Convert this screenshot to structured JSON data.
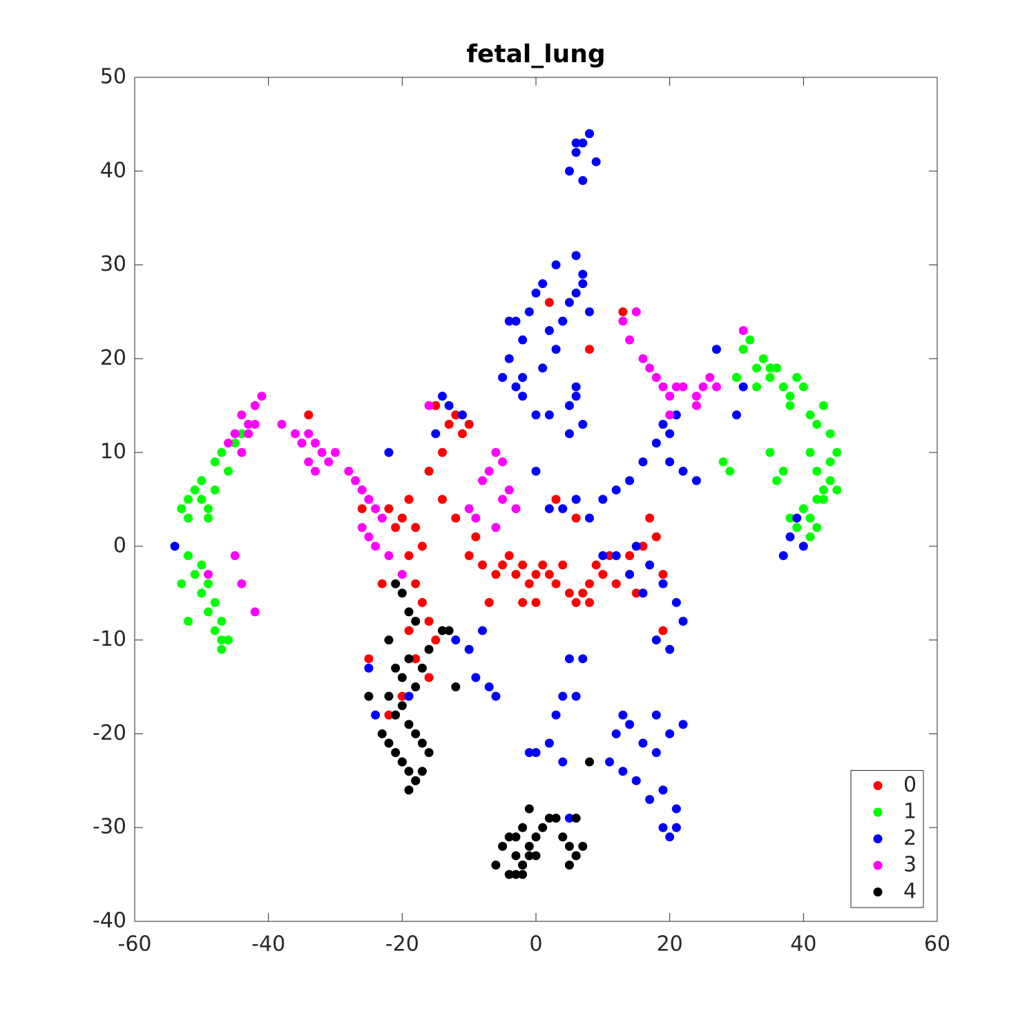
{
  "chart_data": {
    "type": "scatter",
    "title": "fetal_lung",
    "xlim": [
      -60,
      60
    ],
    "xticks": [
      -60,
      -40,
      -20,
      0,
      20,
      40,
      60
    ],
    "ylim": [
      -40,
      50
    ],
    "yticks": [
      -40,
      -30,
      -20,
      -10,
      0,
      10,
      20,
      30,
      40,
      50
    ],
    "legend": "lower right",
    "series": [
      {
        "name": "0",
        "color": "#ff0000",
        "x": [
          -10,
          -8,
          -6,
          -5,
          -4,
          -3,
          -2,
          -1,
          0,
          1,
          2,
          3,
          4,
          5,
          6,
          7,
          8,
          10,
          12,
          14,
          16,
          17,
          18,
          19,
          19,
          8,
          3,
          -2,
          -7,
          -9,
          -12,
          -14,
          -16,
          -17,
          -18,
          -19,
          -20,
          -21,
          -22,
          -19,
          -18,
          -17,
          -16,
          -19,
          -18,
          -16,
          -15,
          -20,
          -22,
          -25,
          -14,
          -13,
          -12,
          -10,
          -15,
          -11,
          -34,
          13,
          2,
          8,
          -23,
          -26,
          0,
          11,
          15,
          6,
          9
        ],
        "y": [
          -1,
          -2,
          -3,
          -2,
          -1,
          -3,
          -2,
          -4,
          -3,
          -2,
          -3,
          -4,
          -2,
          -5,
          -6,
          -5,
          -4,
          -3,
          -4,
          -1,
          0,
          3,
          1,
          -3,
          -9,
          -6,
          5,
          -6,
          -6,
          1,
          3,
          5,
          8,
          0,
          2,
          5,
          3,
          2,
          4,
          -1,
          -4,
          -6,
          -8,
          -9,
          -12,
          -14,
          -10,
          -16,
          -18,
          -12,
          10,
          13,
          14,
          13,
          15,
          12,
          14,
          25,
          26,
          21,
          -4,
          4,
          -6,
          -1,
          -5,
          3,
          -2
        ]
      },
      {
        "name": "1",
        "color": "#00ff00",
        "x": [
          -53,
          -52,
          -51,
          -50,
          -49,
          -52,
          -51,
          -50,
          -49,
          -48,
          -52,
          -51,
          -50,
          -49,
          -48,
          -47,
          -50,
          -49,
          -48,
          -47,
          -48,
          -47,
          -46,
          -45,
          -44,
          -43,
          -47,
          -46,
          -53,
          -52,
          30,
          31,
          32,
          33,
          34,
          35,
          36,
          37,
          38,
          39,
          33,
          35,
          38,
          40,
          41,
          42,
          43,
          44,
          45,
          41,
          42,
          43,
          44,
          40,
          41,
          42,
          43,
          44,
          45,
          37,
          38,
          39,
          40,
          41,
          42,
          28,
          29,
          30,
          36,
          35
        ],
        "y": [
          4,
          5,
          6,
          5,
          3,
          3,
          6,
          7,
          4,
          6,
          -1,
          -3,
          -5,
          -7,
          -9,
          -10,
          -2,
          -4,
          -6,
          -8,
          9,
          10,
          8,
          11,
          12,
          12,
          -11,
          -10,
          -4,
          -8,
          18,
          21,
          22,
          19,
          20,
          18,
          19,
          17,
          16,
          18,
          17,
          19,
          15,
          17,
          14,
          13,
          15,
          12,
          10,
          10,
          8,
          6,
          9,
          4,
          3,
          2,
          5,
          7,
          6,
          8,
          3,
          2,
          4,
          1,
          5,
          9,
          8,
          18,
          7,
          10
        ]
      },
      {
        "name": "2",
        "color": "#0000ff",
        "x": [
          7,
          8,
          6,
          9,
          5,
          7,
          8,
          6,
          -4,
          -3,
          -2,
          -1,
          0,
          1,
          2,
          3,
          4,
          5,
          6,
          7,
          -5,
          -3,
          -2,
          0,
          2,
          5,
          6,
          7,
          -4,
          -2,
          1,
          3,
          6,
          7,
          8,
          5,
          4,
          6,
          0,
          2,
          4,
          6,
          8,
          10,
          12,
          14,
          16,
          18,
          20,
          22,
          24,
          20,
          21,
          19,
          15,
          17,
          19,
          21,
          22,
          18,
          20,
          16,
          14,
          12,
          10,
          12,
          14,
          16,
          18,
          20,
          22,
          19,
          21,
          17,
          15,
          13,
          11,
          20,
          21,
          19,
          18,
          13,
          5,
          4,
          6,
          3,
          7,
          0,
          -1,
          2,
          4,
          -8,
          -7,
          -6,
          -9,
          -10,
          -12,
          -15,
          -14,
          -13,
          -11,
          -22,
          -25,
          -24,
          -19,
          40,
          38,
          37,
          39,
          31,
          27,
          30,
          -54,
          6,
          5
        ],
        "y": [
          43,
          44,
          42,
          41,
          40,
          39,
          44,
          43,
          20,
          24,
          22,
          25,
          27,
          19,
          23,
          21,
          24,
          26,
          27,
          29,
          18,
          17,
          16,
          14,
          14,
          15,
          16,
          13,
          24,
          18,
          28,
          30,
          31,
          28,
          25,
          12,
          24,
          17,
          8,
          4,
          4,
          5,
          3,
          5,
          6,
          7,
          9,
          11,
          9,
          8,
          7,
          12,
          14,
          13,
          0,
          -2,
          -4,
          -6,
          -8,
          -10,
          -11,
          -5,
          -3,
          -1,
          -1,
          -20,
          -19,
          -21,
          -22,
          -20,
          -19,
          -26,
          -28,
          -27,
          -25,
          -24,
          -23,
          -31,
          -30,
          -30,
          -18,
          -18,
          -12,
          -16,
          -16,
          -18,
          -12,
          -22,
          -22,
          -21,
          -23,
          -9,
          -15,
          -16,
          -14,
          -11,
          -10,
          12,
          16,
          15,
          14,
          10,
          -13,
          -18,
          -16,
          0,
          1,
          -1,
          3,
          17,
          21,
          14,
          0,
          -33,
          -29
        ]
      },
      {
        "name": "3",
        "color": "#ff00ff",
        "x": [
          -46,
          -45,
          -44,
          -43,
          -42,
          -41,
          -42,
          -43,
          -44,
          -45,
          -38,
          -36,
          -35,
          -34,
          -33,
          -32,
          -31,
          -30,
          -33,
          -34,
          -28,
          -27,
          -26,
          -25,
          -24,
          -23,
          -26,
          -25,
          -24,
          -22,
          -8,
          -7,
          -6,
          -5,
          -4,
          -9,
          -10,
          -6,
          -5,
          -3,
          17,
          18,
          19,
          20,
          21,
          22,
          24,
          25,
          26,
          27,
          16,
          20,
          24,
          13,
          15,
          14,
          31,
          -49,
          -45,
          -42,
          -44,
          -25,
          -20,
          -16
        ],
        "y": [
          11,
          12,
          14,
          13,
          15,
          16,
          13,
          12,
          10,
          12,
          13,
          12,
          11,
          12,
          11,
          10,
          9,
          10,
          8,
          9,
          8,
          7,
          6,
          5,
          4,
          3,
          2,
          1,
          0,
          -1,
          7,
          8,
          10,
          9,
          6,
          3,
          4,
          2,
          5,
          4,
          19,
          18,
          17,
          16,
          17,
          17,
          16,
          17,
          18,
          17,
          20,
          14,
          15,
          24,
          25,
          22,
          23,
          -3,
          -1,
          -7,
          -4,
          5,
          -3,
          15
        ]
      },
      {
        "name": "4",
        "color": "#000000",
        "x": [
          -21,
          -20,
          -19,
          -18,
          -22,
          -21,
          -20,
          -19,
          -18,
          -17,
          -22,
          -21,
          -20,
          -19,
          -18,
          -17,
          -16,
          -23,
          -22,
          -20,
          -19,
          -18,
          -17,
          -21,
          -20,
          -19,
          -18,
          -25,
          -16,
          -14,
          -5,
          -4,
          -3,
          -2,
          -1,
          0,
          -4,
          -3,
          -2,
          -1,
          0,
          1,
          2,
          -3,
          -2,
          -1,
          4,
          5,
          6,
          7,
          5,
          6,
          -6,
          3,
          -2,
          8,
          -12,
          -13
        ],
        "y": [
          -4,
          -5,
          -7,
          -8,
          -10,
          -13,
          -14,
          -12,
          -15,
          -13,
          -16,
          -18,
          -17,
          -19,
          -20,
          -21,
          -22,
          -20,
          -21,
          -23,
          -24,
          -25,
          -24,
          -22,
          -23,
          -26,
          -25,
          -16,
          -11,
          -9,
          -32,
          -31,
          -33,
          -34,
          -33,
          -31,
          -35,
          -35,
          -34,
          -32,
          -33,
          -30,
          -29,
          -31,
          -30,
          -28,
          -31,
          -32,
          -33,
          -32,
          -34,
          -29,
          -34,
          -29,
          -35,
          -23,
          -15,
          -9
        ]
      }
    ]
  }
}
